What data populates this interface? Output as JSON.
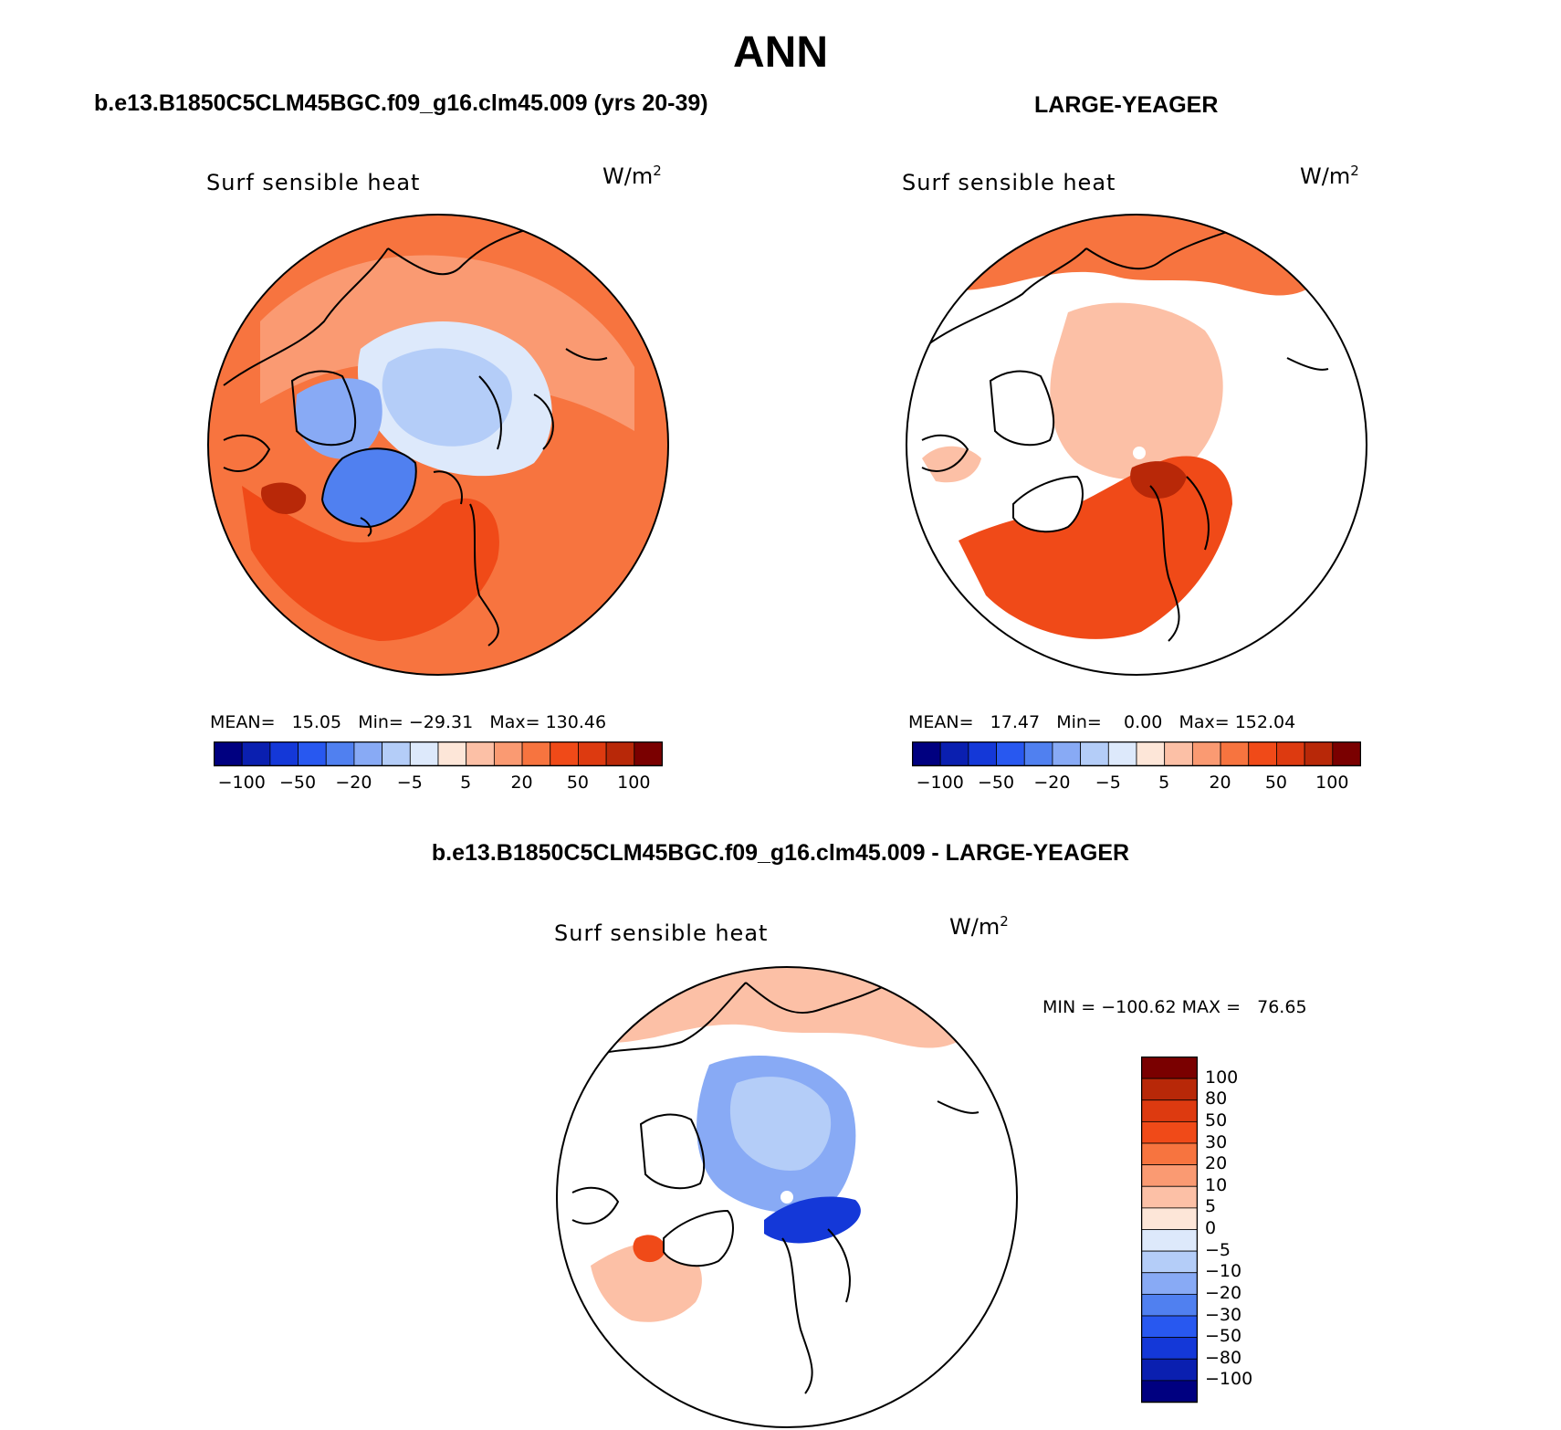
{
  "figure": {
    "title": "ANN"
  },
  "panels": {
    "p1": {
      "case_title": "b.e13.B1850C5CLM45BGC.f09_g16.clm45.009 (yrs 20-39)",
      "variable": "Surf sensible heat",
      "units": "W/m",
      "units_sup": "2",
      "stats": {
        "mean_label": "MEAN=",
        "mean": "15.05",
        "min_label": "Min=",
        "min": "−29.31",
        "max_label": "Max=",
        "max": "130.46"
      }
    },
    "p2": {
      "case_title": "LARGE-YEAGER",
      "variable": "Surf sensible heat",
      "units": "W/m",
      "units_sup": "2",
      "stats": {
        "mean_label": "MEAN=",
        "mean": "17.47",
        "min_label": "Min=",
        "min": "0.00",
        "max_label": "Max=",
        "max": "152.04"
      }
    },
    "p3": {
      "case_title": "b.e13.B1850C5CLM45BGC.f09_g16.clm45.009 - LARGE-YEAGER",
      "variable": "Surf sensible heat",
      "units": "W/m",
      "units_sup": "2",
      "minmax": "MIN = −100.62 MAX =   76.65"
    }
  },
  "colorbar_abs": {
    "colors": [
      "#000080",
      "#0a1fb0",
      "#1438d8",
      "#2858f0",
      "#5080f0",
      "#88aaf5",
      "#b4cdf8",
      "#dde9fb",
      "#fde6d8",
      "#fcc0a6",
      "#fa9a72",
      "#f7743f",
      "#f04a18",
      "#dd3a10",
      "#b82808",
      "#7a0000"
    ],
    "tick_labels": [
      "−100",
      "−50",
      "−20",
      "−5",
      "5",
      "20",
      "50",
      "100"
    ]
  },
  "colorbar_diff": {
    "colors_top_to_bottom": [
      "#7a0000",
      "#b82808",
      "#dd3a10",
      "#f04a18",
      "#f7743f",
      "#fa9a72",
      "#fcc0a6",
      "#fde6d8",
      "#dde9fb",
      "#b4cdf8",
      "#88aaf5",
      "#5080f0",
      "#2858f0",
      "#1438d8",
      "#0a1fb0",
      "#000080"
    ],
    "tick_labels": [
      "100",
      "80",
      "50",
      "30",
      "20",
      "10",
      "5",
      "0",
      "−5",
      "−10",
      "−20",
      "−30",
      "−50",
      "−80",
      "−100"
    ]
  },
  "map_fills": {
    "p1": {
      "base": "#f7743f",
      "regions": [
        {
          "color": "#fa9a72",
          "role": "subpolar"
        },
        {
          "color": "#dde9fb",
          "role": "sea-ice"
        },
        {
          "color": "#b4cdf8",
          "role": "central-arctic"
        },
        {
          "color": "#88aaf5",
          "role": "archipelago"
        },
        {
          "color": "#5080f0",
          "role": "greenland"
        },
        {
          "color": "#f04a18",
          "role": "north-atlantic"
        },
        {
          "color": "#b82808",
          "role": "labrador-max"
        }
      ]
    },
    "p2": {
      "base": "#ffffff",
      "regions": [
        {
          "color": "#fcc0a6",
          "role": "arctic-ocean"
        },
        {
          "color": "#f7743f",
          "role": "north-pacific"
        },
        {
          "color": "#f04a18",
          "role": "north-atlantic"
        },
        {
          "color": "#b82808",
          "role": "barents-max"
        }
      ]
    },
    "p3": {
      "base": "#ffffff",
      "regions": [
        {
          "color": "#fcc0a6",
          "role": "pacific-positive"
        },
        {
          "color": "#88aaf5",
          "role": "arctic-negative"
        },
        {
          "color": "#b4cdf8",
          "role": "arctic-weak-negative"
        },
        {
          "color": "#1438d8",
          "role": "barents-strong-negative"
        },
        {
          "color": "#f04a18",
          "role": "labrador-positive"
        }
      ]
    }
  }
}
